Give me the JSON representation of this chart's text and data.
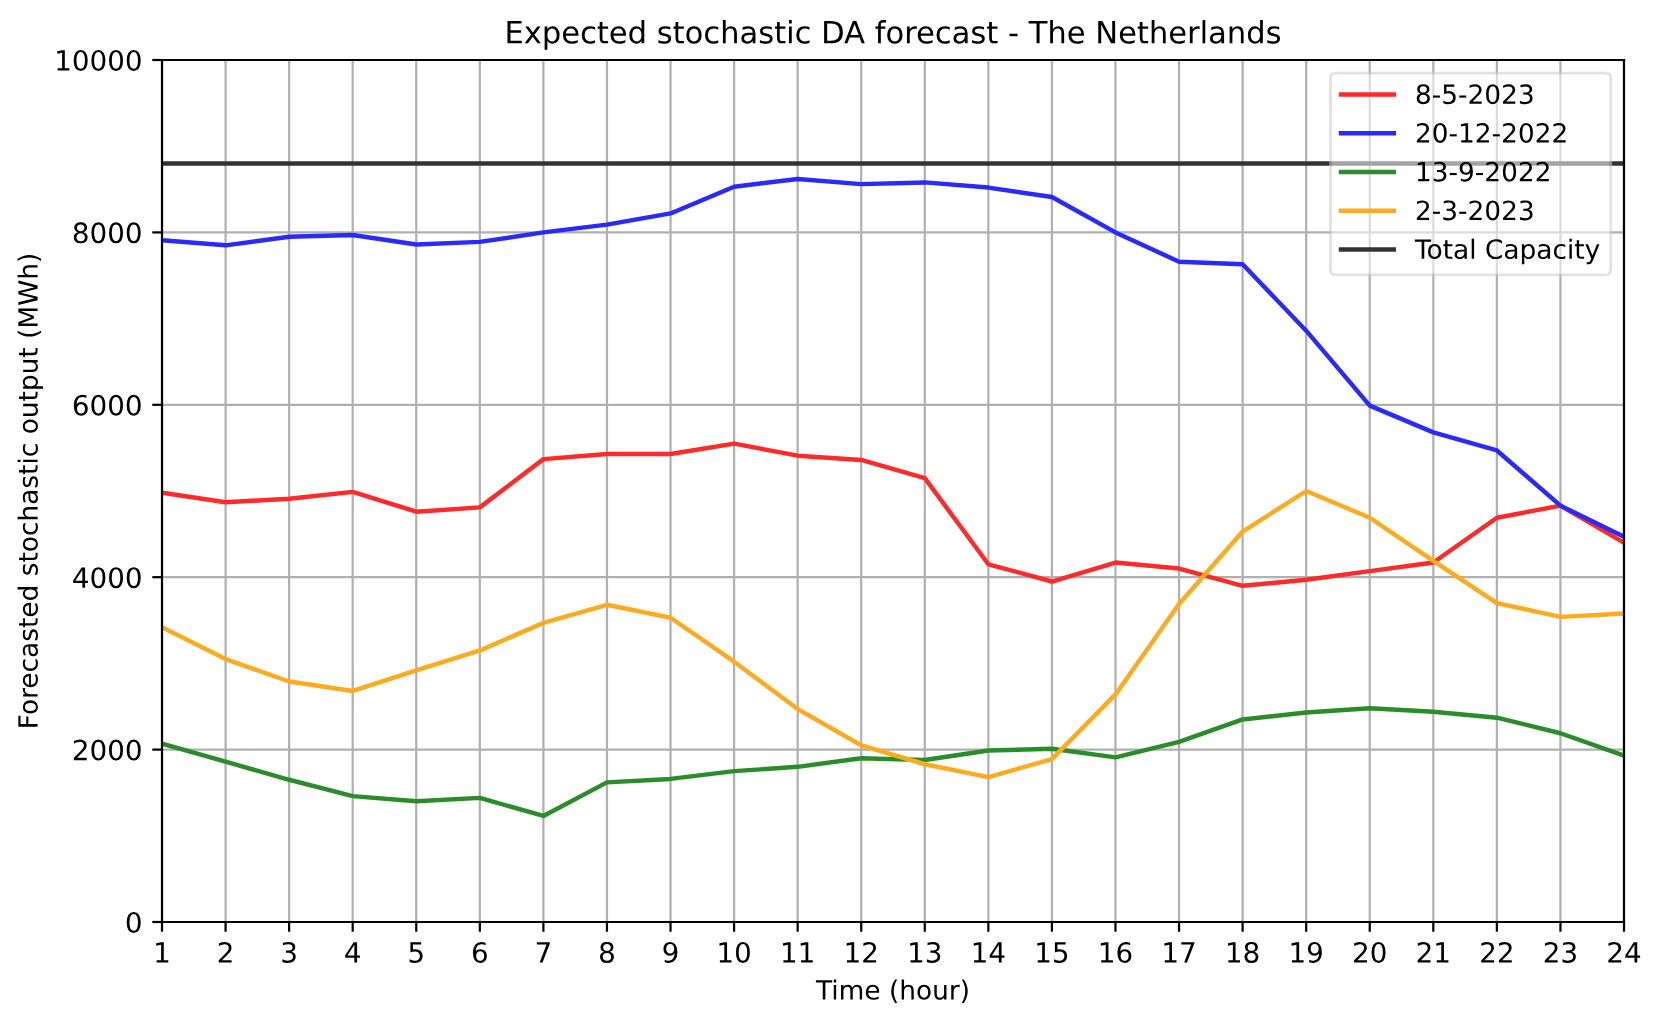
{
  "chart_data": {
    "type": "line",
    "title": "Expected stochastic DA forecast - The Netherlands",
    "xlabel": "Time (hour)",
    "ylabel": "Forecasted stochastic output (MWh)",
    "x": [
      1,
      2,
      3,
      4,
      5,
      6,
      7,
      8,
      9,
      10,
      11,
      12,
      13,
      14,
      15,
      16,
      17,
      18,
      19,
      20,
      21,
      22,
      23,
      24
    ],
    "series": [
      {
        "name": "8-5-2023",
        "color": "#ff2a2a",
        "values": [
          4980,
          4870,
          4910,
          4990,
          4760,
          4810,
          5370,
          5430,
          5430,
          5550,
          5410,
          5360,
          5150,
          4150,
          3950,
          4170,
          4100,
          3900,
          3970,
          4070,
          4170,
          4690,
          4830,
          4400
        ]
      },
      {
        "name": "20-12-2022",
        "color": "#2a2aff",
        "values": [
          7910,
          7850,
          7950,
          7970,
          7860,
          7890,
          8000,
          8090,
          8220,
          8530,
          8620,
          8560,
          8580,
          8520,
          8410,
          8000,
          7660,
          7630,
          6860,
          5990,
          5680,
          5470,
          4830,
          4470
        ]
      },
      {
        "name": "13-9-2022",
        "color": "#2a8c2a",
        "values": [
          2070,
          1860,
          1650,
          1460,
          1400,
          1440,
          1230,
          1620,
          1660,
          1750,
          1800,
          1900,
          1880,
          1990,
          2010,
          1910,
          2090,
          2350,
          2430,
          2480,
          2440,
          2370,
          2190,
          1930
        ]
      },
      {
        "name": "2-3-2023",
        "color": "#ffaa1f",
        "values": [
          3420,
          3050,
          2790,
          2680,
          2920,
          3150,
          3470,
          3680,
          3530,
          3020,
          2470,
          2050,
          1830,
          1680,
          1890,
          2640,
          3690,
          4530,
          5000,
          4690,
          4190,
          3700,
          3540,
          3580
        ]
      },
      {
        "name": "Total Capacity",
        "color": "#333333",
        "values": [
          8800,
          8800,
          8800,
          8800,
          8800,
          8800,
          8800,
          8800,
          8800,
          8800,
          8800,
          8800,
          8800,
          8800,
          8800,
          8800,
          8800,
          8800,
          8800,
          8800,
          8800,
          8800,
          8800,
          8800
        ]
      }
    ],
    "xlim": [
      1,
      24
    ],
    "xticks": [
      1,
      2,
      3,
      4,
      5,
      6,
      7,
      8,
      9,
      10,
      11,
      12,
      13,
      14,
      15,
      16,
      17,
      18,
      19,
      20,
      21,
      22,
      23,
      24
    ],
    "ylim": [
      0,
      10000
    ],
    "yticks": [
      0,
      2000,
      4000,
      6000,
      8000,
      10000
    ],
    "grid": true,
    "legend": "top right"
  }
}
